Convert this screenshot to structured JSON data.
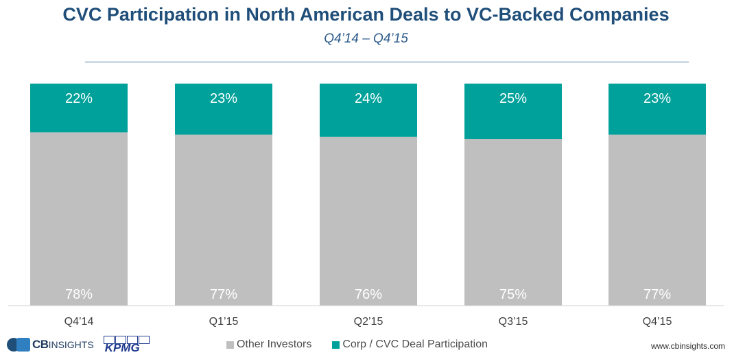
{
  "title": "CVC Participation in North American Deals to VC-Backed Companies",
  "subtitle": "Q4’14 – Q4’15",
  "chart_data": {
    "type": "bar",
    "stacked": true,
    "percent_stacked": true,
    "categories": [
      "Q4’14",
      "Q1’15",
      "Q2’15",
      "Q3’15",
      "Q4’15"
    ],
    "series": [
      {
        "name": "Other Investors",
        "values": [
          78,
          77,
          76,
          75,
          77
        ],
        "labels": [
          "78%",
          "77%",
          "76%",
          "75%",
          "77%"
        ],
        "color": "#bfbfbf"
      },
      {
        "name": "Corp / CVC Deal Participation",
        "values": [
          22,
          23,
          24,
          25,
          23
        ],
        "labels": [
          "22%",
          "23%",
          "24%",
          "25%",
          "23%"
        ],
        "color": "#00a19a"
      }
    ],
    "ylim": [
      0,
      100
    ],
    "grid": false,
    "legend_position": "bottom"
  },
  "footer": {
    "cb_logo_bold": "CB",
    "cb_logo_light": "INSIGHTS",
    "kpmg_logo": "KPMG",
    "source": "www.cbinsights.com"
  }
}
